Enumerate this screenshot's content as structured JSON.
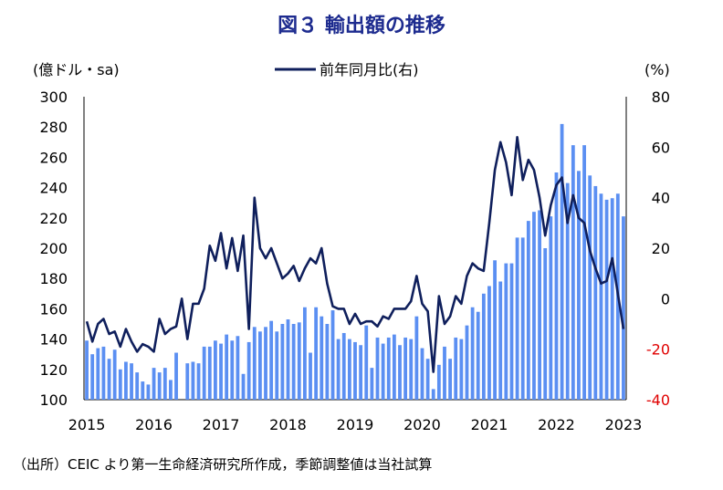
{
  "title": "図３ 輸出額の推移",
  "source_note": "（出所）CEIC より第一生命経済研究所作成，季節調整値は当社試算",
  "colors": {
    "bar": "#5b8ff2",
    "line": "#0f1f5c",
    "negative_tick": "#e00000",
    "title": "#1d2b8f"
  },
  "chart_data": {
    "type": "bar+line",
    "left_unit": "(億ドル・sa)",
    "right_unit": "(%)",
    "legend": "前年同月比(右)",
    "left_ylim": [
      100,
      300
    ],
    "left_ticks": [
      "100",
      "120",
      "140",
      "160",
      "180",
      "200",
      "220",
      "240",
      "260",
      "280",
      "300"
    ],
    "right_ylim": [
      -40,
      80
    ],
    "right_ticks": [
      "-40",
      "-20",
      "0",
      "20",
      "40",
      "60",
      "80"
    ],
    "x_labels": [
      "2015",
      "2016",
      "2017",
      "2018",
      "2019",
      "2020",
      "2021",
      "2022",
      "2023"
    ],
    "bar_series": {
      "name": "輸出額",
      "values": [
        139,
        130,
        134,
        135,
        127,
        133,
        120,
        125,
        124,
        118,
        112,
        110,
        121,
        118,
        121,
        113,
        131,
        100,
        124,
        125,
        124,
        135,
        135,
        139,
        137,
        143,
        139,
        142,
        117,
        138,
        148,
        145,
        148,
        152,
        145,
        150,
        153,
        150,
        151,
        161,
        131,
        161,
        155,
        150,
        159,
        140,
        144,
        140,
        138,
        136,
        149,
        121,
        141,
        137,
        141,
        143,
        136,
        141,
        140,
        155,
        134,
        127,
        107,
        123,
        135,
        127,
        141,
        140,
        149,
        161,
        158,
        170,
        175,
        192,
        178,
        190,
        190,
        207,
        207,
        218,
        224,
        225,
        200,
        221,
        250,
        282,
        243,
        268,
        251,
        268,
        248,
        241,
        236,
        232,
        233,
        236,
        221
      ]
    },
    "line_series": {
      "name": "前年同月比(右)",
      "values": [
        -9,
        -17,
        -10,
        -8,
        -14,
        -13,
        -19,
        -12,
        -17,
        -21,
        -18,
        -19,
        -21,
        -8,
        -14,
        -12,
        -11,
        0,
        -16,
        -2,
        -2,
        4,
        21,
        15,
        26,
        12,
        24,
        11,
        25,
        -12,
        40,
        20,
        16,
        20,
        14,
        8,
        10,
        13,
        7,
        12,
        16,
        14,
        20,
        6,
        -3,
        -4,
        -4,
        -10,
        -6,
        -10,
        -9,
        -9,
        -11,
        -7,
        -8,
        -4,
        -4,
        -4,
        -1,
        9,
        -2,
        -5,
        -29,
        1,
        -10,
        -7,
        1,
        -2,
        9,
        14,
        12,
        11,
        30,
        51,
        62,
        54,
        41,
        64,
        47,
        55,
        51,
        40,
        25,
        37,
        45,
        48,
        30,
        41,
        32,
        30,
        19,
        12,
        6,
        7,
        16,
        2,
        -12
      ]
    }
  }
}
